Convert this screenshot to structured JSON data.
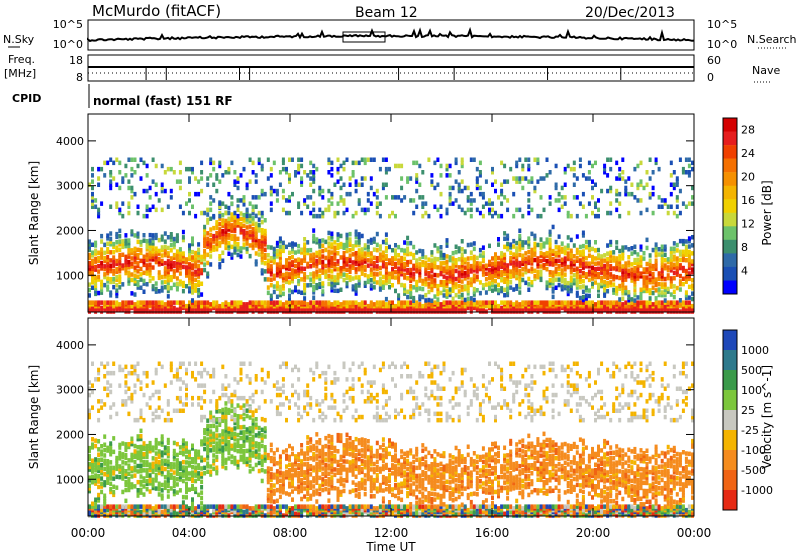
{
  "header": {
    "station": "McMurdo (fitACF)",
    "beam": "Beam 12",
    "date": "20/Dec/2013"
  },
  "strips": {
    "nsky_label": "N.Sky",
    "nsky_ticks": [
      "10^5",
      "10^0"
    ],
    "nsearch_label": "N.Search",
    "nsearch_ticks": [
      "10^5",
      "10^0"
    ],
    "freq_label_1": "Freq.",
    "freq_label_2": "[MHz]",
    "freq_ticks": [
      "18",
      "8"
    ],
    "nave_label": "Nave",
    "nave_ticks": [
      "60",
      "0"
    ],
    "cpid_label": "CPID",
    "cpid_text": "normal (fast) 151 RF"
  },
  "chart_data": [
    {
      "type": "heatmap",
      "panel": "power",
      "title": "",
      "xlabel": "Time UT",
      "ylabel": "Slant Range [km]",
      "x_ticks": [
        "00:00",
        "04:00",
        "08:00",
        "12:00",
        "16:00",
        "20:00",
        "00:00"
      ],
      "y_ticks": [
        "1000",
        "2000",
        "3000",
        "4000"
      ],
      "xlim": [
        0,
        24
      ],
      "ylim": [
        180,
        4600
      ],
      "colorbar": {
        "label": "Power [dB]",
        "ticks": [
          "4",
          "8",
          "12",
          "16",
          "20",
          "24",
          "28"
        ],
        "range": [
          0,
          30
        ],
        "colors": [
          "#0000ff",
          "#1a4fb4",
          "#2e6aa8",
          "#3c8f6e",
          "#6cc26a",
          "#c8d83a",
          "#f0d000",
          "#f4b400",
          "#f59000",
          "#f57000",
          "#f04000",
          "#e61d1d",
          "#d40000"
        ]
      }
    },
    {
      "type": "heatmap",
      "panel": "velocity",
      "title": "",
      "xlabel": "Time UT",
      "ylabel": "Slant Range [km]",
      "x_ticks": [
        "00:00",
        "04:00",
        "08:00",
        "12:00",
        "16:00",
        "20:00",
        "00:00"
      ],
      "y_ticks": [
        "1000",
        "2000",
        "3000",
        "4000"
      ],
      "xlim": [
        0,
        24
      ],
      "ylim": [
        180,
        4600
      ],
      "colorbar": {
        "label": "Velocity [m s^-1]",
        "ticks": [
          "1000",
          "500",
          "100",
          "25",
          "-25",
          "-100",
          "-500",
          "-1000"
        ],
        "colors": [
          "#1e48b8",
          "#2e7a8c",
          "#3a9a4a",
          "#7cc63c",
          "#c8c8c0",
          "#f4b400",
          "#f58c1e",
          "#f06414",
          "#e62a14"
        ]
      }
    }
  ],
  "colors": {
    "axis": "#000000",
    "background": "#ffffff"
  }
}
